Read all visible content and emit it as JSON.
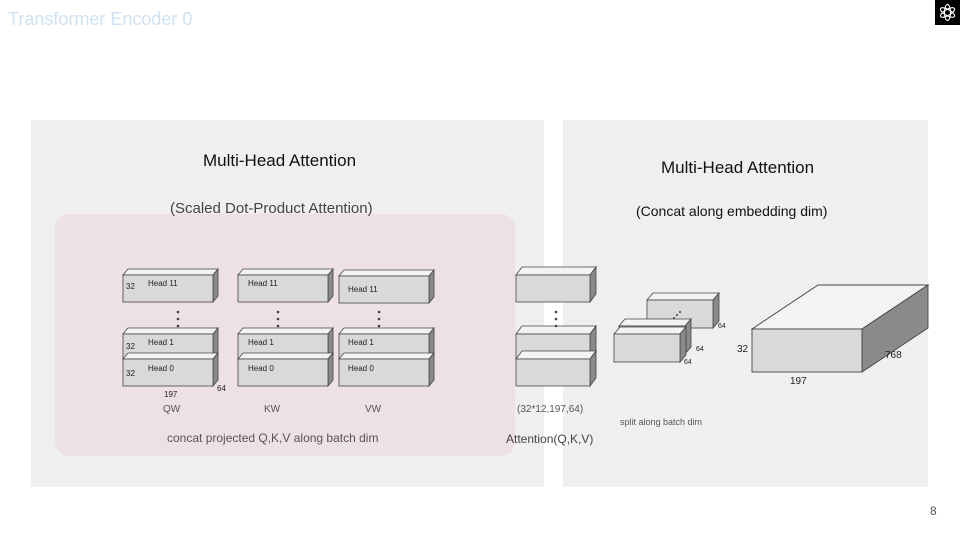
{
  "slide": {
    "title": "Transformer Encoder 0",
    "page_number": "8"
  },
  "left_panel": {
    "title": "Multi-Head Attention",
    "subtitle": "(Scaled Dot-Product Attention)",
    "caption": "concat projected Q,K,V along batch dim",
    "heads": {
      "top": "Head 11",
      "mid": "Head 1",
      "bottom": "Head 0"
    },
    "dims": {
      "batch": "32",
      "seq": "197",
      "head_dim": "64"
    },
    "stacks": [
      "QW",
      "KW",
      "VW"
    ],
    "output_shape": "(32*12,197,64)",
    "attention_label": "Attention(Q,K,V)"
  },
  "right_panel": {
    "title": "Multi-Head Attention",
    "subtitle": "(Concat along embedding dim)",
    "split_caption": "split along batch dim",
    "split_dims": [
      "64",
      "64",
      "64"
    ],
    "big_block": {
      "batch": "32",
      "seq": "197",
      "embed": "768"
    }
  }
}
